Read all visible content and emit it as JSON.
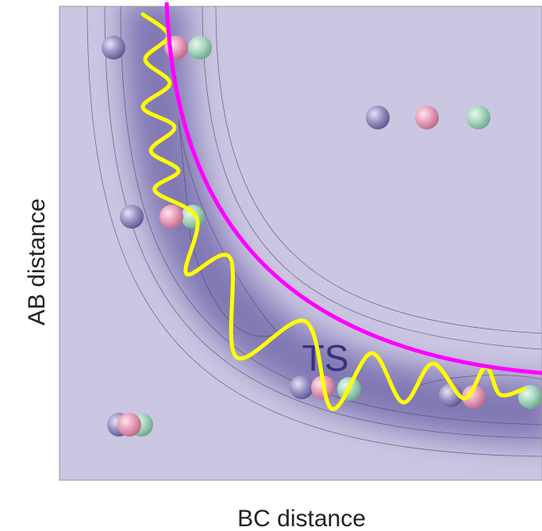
{
  "labels": {
    "y_axis": "AB distance",
    "x_axis": "BC distance",
    "transition_state": "TS"
  }
}
